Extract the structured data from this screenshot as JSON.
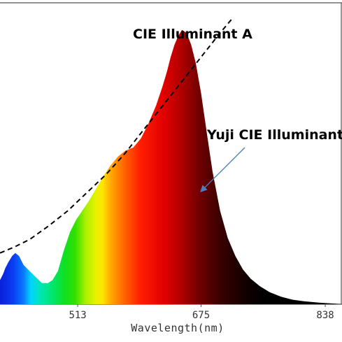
{
  "chart_data": {
    "type": "area",
    "xlabel": "Wavelength(nm)",
    "ylabel": "",
    "x_ticks": [
      513,
      675,
      838
    ],
    "xlim": [
      411,
      860
    ],
    "ylim": [
      0,
      1.0
    ],
    "grid": false,
    "series": [
      {
        "name": "Yuji CIE Illuminant",
        "style": "spectrum-filled",
        "x": [
          411,
          415,
          418,
          422,
          427,
          431,
          436,
          442,
          450,
          458,
          466,
          474,
          480,
          487,
          495,
          503,
          511,
          519,
          527,
          534,
          541,
          548,
          556,
          566,
          576,
          586,
          596,
          606,
          616,
          624,
          630,
          635,
          640,
          645,
          650,
          656,
          662,
          668,
          675,
          683,
          690,
          700,
          710,
          720,
          730,
          740,
          752,
          765,
          780,
          795,
          810,
          830,
          850,
          860
        ],
        "y": [
          0.08,
          0.1,
          0.12,
          0.14,
          0.16,
          0.17,
          0.16,
          0.13,
          0.11,
          0.09,
          0.07,
          0.07,
          0.08,
          0.11,
          0.18,
          0.24,
          0.28,
          0.31,
          0.34,
          0.37,
          0.4,
          0.43,
          0.46,
          0.49,
          0.51,
          0.52,
          0.55,
          0.6,
          0.66,
          0.72,
          0.77,
          0.82,
          0.86,
          0.89,
          0.91,
          0.9,
          0.86,
          0.8,
          0.7,
          0.56,
          0.44,
          0.31,
          0.22,
          0.16,
          0.115,
          0.085,
          0.06,
          0.04,
          0.025,
          0.015,
          0.01,
          0.005,
          0.002,
          0.0
        ]
      },
      {
        "name": "CIE Illuminant A",
        "style": "dashed",
        "x": [
          411,
          430,
          450,
          475,
          500,
          525,
          550,
          575,
          600,
          625,
          650,
          675,
          700,
          715
        ],
        "y": [
          0.17,
          0.19,
          0.215,
          0.26,
          0.31,
          0.37,
          0.43,
          0.5,
          0.58,
          0.66,
          0.74,
          0.82,
          0.9,
          0.945
        ]
      }
    ],
    "annotations": [
      {
        "text": "CIE Illuminant A"
      },
      {
        "text": "Yuji CIE Illuminant",
        "arrow": true
      }
    ]
  }
}
